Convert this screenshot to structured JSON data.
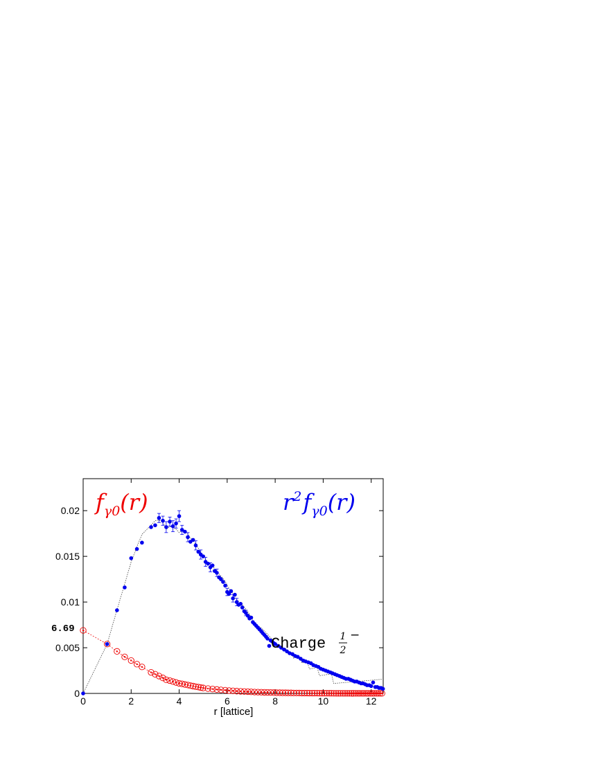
{
  "chart_data": {
    "type": "scatter",
    "xlabel": "r [lattice]",
    "ylabel": "",
    "xlim": [
      0,
      12.5
    ],
    "ylim": [
      0,
      0.0235
    ],
    "grid": false,
    "xticks": [
      0,
      2,
      4,
      6,
      8,
      10,
      12
    ],
    "xtick_labels": [
      "0",
      "2",
      "4",
      "6",
      "8",
      "10",
      "12"
    ],
    "yticks": [
      0,
      0.005,
      0.01,
      0.015,
      0.02
    ],
    "ytick_labels": [
      "0",
      "0.005",
      "0.01",
      "0.015",
      "0.02"
    ],
    "annotations": {
      "left_label": {
        "base": "f",
        "sub": "γ0",
        "arg": "(r)"
      },
      "right_label": {
        "base": "r",
        "sup": "2",
        "mid": "f",
        "sub": "γ0",
        "arg": "(r)"
      },
      "charge_text": "Charge",
      "charge_frac_num": "1",
      "charge_frac_den": "2",
      "charge_sign": "−",
      "intercept_label": "6.69"
    },
    "colors": {
      "r2f": "#0000ee",
      "f": "#ee0000",
      "fit": "#444444"
    },
    "series": [
      {
        "name": "r^2 f_γ0(r)",
        "marker": "filled-circle",
        "points": [
          [
            0,
            0
          ],
          [
            1.0,
            0.0054
          ],
          [
            1.41,
            0.0091
          ],
          [
            1.73,
            0.0116
          ],
          [
            2.0,
            0.0148
          ],
          [
            2.24,
            0.0158
          ],
          [
            2.45,
            0.0165
          ],
          [
            2.83,
            0.0182
          ],
          [
            3.0,
            0.0184
          ],
          [
            3.16,
            0.0192
          ],
          [
            3.32,
            0.0189
          ],
          [
            3.46,
            0.0182
          ],
          [
            3.61,
            0.0188
          ],
          [
            3.74,
            0.0183
          ],
          [
            3.87,
            0.0186
          ],
          [
            4.0,
            0.0194
          ],
          [
            4.12,
            0.0179
          ],
          [
            4.24,
            0.0177
          ],
          [
            4.36,
            0.0171
          ],
          [
            4.47,
            0.0166
          ],
          [
            4.58,
            0.0168
          ],
          [
            4.69,
            0.0162
          ],
          [
            4.8,
            0.0155
          ],
          [
            4.9,
            0.0152
          ],
          [
            5.0,
            0.015
          ],
          [
            5.1,
            0.0144
          ],
          [
            5.2,
            0.0142
          ],
          [
            5.3,
            0.0138
          ],
          [
            5.39,
            0.014
          ],
          [
            5.48,
            0.0134
          ],
          [
            5.57,
            0.0132
          ],
          [
            5.66,
            0.0127
          ],
          [
            5.74,
            0.0125
          ],
          [
            5.83,
            0.0122
          ],
          [
            5.92,
            0.0118
          ],
          [
            6.0,
            0.0111
          ],
          [
            6.08,
            0.0109
          ],
          [
            6.16,
            0.0112
          ],
          [
            6.24,
            0.0104
          ],
          [
            6.32,
            0.0108
          ],
          [
            6.4,
            0.01
          ],
          [
            6.48,
            0.0097
          ],
          [
            6.56,
            0.0098
          ],
          [
            6.63,
            0.0094
          ],
          [
            6.71,
            0.009
          ],
          [
            6.78,
            0.0088
          ],
          [
            6.86,
            0.0085
          ],
          [
            6.93,
            0.0082
          ],
          [
            7.0,
            0.0083
          ],
          [
            7.07,
            0.0078
          ],
          [
            7.14,
            0.0076
          ],
          [
            7.21,
            0.0074
          ],
          [
            7.28,
            0.0072
          ],
          [
            7.35,
            0.007
          ],
          [
            7.42,
            0.0068
          ],
          [
            7.48,
            0.0066
          ],
          [
            7.55,
            0.0064
          ],
          [
            7.62,
            0.0062
          ],
          [
            7.68,
            0.006
          ],
          [
            7.75,
            0.0052
          ],
          [
            7.81,
            0.0058
          ],
          [
            7.87,
            0.0057
          ],
          [
            7.94,
            0.0055
          ],
          [
            8.0,
            0.0054
          ],
          [
            8.12,
            0.0052
          ],
          [
            8.25,
            0.005
          ],
          [
            8.37,
            0.0048
          ],
          [
            8.49,
            0.0046
          ],
          [
            8.6,
            0.0044
          ],
          [
            8.72,
            0.0043
          ],
          [
            8.83,
            0.0041
          ],
          [
            8.94,
            0.004
          ],
          [
            9.06,
            0.0038
          ],
          [
            9.17,
            0.0036
          ],
          [
            9.27,
            0.0035
          ],
          [
            9.38,
            0.0034
          ],
          [
            9.49,
            0.0033
          ],
          [
            9.59,
            0.0031
          ],
          [
            9.7,
            0.003
          ],
          [
            9.8,
            0.0029
          ],
          [
            9.9,
            0.0027
          ],
          [
            10.0,
            0.0026
          ],
          [
            10.1,
            0.0025
          ],
          [
            10.2,
            0.0024
          ],
          [
            10.3,
            0.0023
          ],
          [
            10.39,
            0.0022
          ],
          [
            10.49,
            0.0021
          ],
          [
            10.58,
            0.002
          ],
          [
            10.68,
            0.0019
          ],
          [
            10.77,
            0.0018
          ],
          [
            10.86,
            0.0017
          ],
          [
            10.95,
            0.0016
          ],
          [
            11.05,
            0.0016
          ],
          [
            11.14,
            0.0015
          ],
          [
            11.22,
            0.0014
          ],
          [
            11.31,
            0.0013
          ],
          [
            11.4,
            0.0013
          ],
          [
            11.49,
            0.0012
          ],
          [
            11.58,
            0.0011
          ],
          [
            11.66,
            0.0011
          ],
          [
            11.75,
            0.001
          ],
          [
            11.83,
            0.0009
          ],
          [
            11.92,
            0.0009
          ],
          [
            12.0,
            0.0008
          ],
          [
            12.08,
            0.0012
          ],
          [
            12.17,
            0.0007
          ],
          [
            12.25,
            0.0007
          ],
          [
            12.33,
            0.0006
          ],
          [
            12.41,
            0.0006
          ],
          [
            12.49,
            0.0005
          ]
        ],
        "error_bars": [
          [
            3.16,
            0.0192,
            0.0005
          ],
          [
            3.32,
            0.0189,
            0.0005
          ],
          [
            3.46,
            0.0182,
            0.0006
          ],
          [
            3.61,
            0.0188,
            0.0005
          ],
          [
            3.74,
            0.0183,
            0.0006
          ],
          [
            3.87,
            0.0186,
            0.0005
          ],
          [
            4.0,
            0.0194,
            0.0006
          ],
          [
            4.12,
            0.0179,
            0.0005
          ],
          [
            4.36,
            0.0171,
            0.0005
          ],
          [
            4.69,
            0.0162,
            0.0005
          ],
          [
            4.9,
            0.0152,
            0.0005
          ],
          [
            5.1,
            0.0144,
            0.0005
          ],
          [
            5.3,
            0.0138,
            0.0005
          ],
          [
            5.57,
            0.0132,
            0.0004
          ],
          [
            6.0,
            0.0111,
            0.0004
          ],
          [
            6.24,
            0.0104,
            0.0004
          ],
          [
            6.4,
            0.01,
            0.0004
          ],
          [
            6.78,
            0.0088,
            0.0003
          ]
        ]
      },
      {
        "name": "f_γ0(r)",
        "marker": "open-circle",
        "points": [
          [
            0,
            0.0069
          ],
          [
            1.0,
            0.0054
          ],
          [
            1.41,
            0.0046
          ],
          [
            1.73,
            0.004
          ],
          [
            2.0,
            0.0036
          ],
          [
            2.24,
            0.0032
          ],
          [
            2.45,
            0.0029
          ],
          [
            2.83,
            0.0023
          ],
          [
            3.0,
            0.0021
          ],
          [
            3.16,
            0.0019
          ],
          [
            3.32,
            0.0017
          ],
          [
            3.46,
            0.0015
          ],
          [
            3.61,
            0.0014
          ],
          [
            3.74,
            0.0013
          ],
          [
            3.87,
            0.0012
          ],
          [
            4.0,
            0.0011
          ],
          [
            4.12,
            0.00105
          ],
          [
            4.24,
            0.00098
          ],
          [
            4.36,
            0.00092
          ],
          [
            4.47,
            0.00085
          ],
          [
            4.58,
            0.0008
          ],
          [
            4.69,
            0.00074
          ],
          [
            4.8,
            0.00069
          ],
          [
            4.9,
            0.00064
          ],
          [
            5.0,
            0.0006
          ],
          [
            5.2,
            0.00053
          ],
          [
            5.39,
            0.00048
          ],
          [
            5.57,
            0.00043
          ],
          [
            5.74,
            0.00039
          ],
          [
            5.92,
            0.00035
          ],
          [
            6.08,
            0.00031
          ],
          [
            6.24,
            0.00028
          ],
          [
            6.4,
            0.00025
          ],
          [
            6.56,
            0.00023
          ],
          [
            6.71,
            0.00021
          ],
          [
            6.86,
            0.00019
          ],
          [
            7.0,
            0.00017
          ],
          [
            7.14,
            0.00015
          ],
          [
            7.28,
            0.00014
          ],
          [
            7.42,
            0.00013
          ],
          [
            7.55,
            0.00012
          ],
          [
            7.68,
            0.00011
          ],
          [
            7.81,
            0.0001
          ],
          [
            7.94,
            9e-05
          ],
          [
            8.06,
            8e-05
          ],
          [
            8.19,
            8e-05
          ],
          [
            8.31,
            7e-05
          ],
          [
            8.43,
            7e-05
          ],
          [
            8.54,
            6e-05
          ],
          [
            8.66,
            6e-05
          ],
          [
            8.77,
            5e-05
          ],
          [
            8.89,
            5e-05
          ],
          [
            9.0,
            5e-05
          ],
          [
            9.11,
            4e-05
          ],
          [
            9.22,
            4e-05
          ],
          [
            9.33,
            4e-05
          ],
          [
            9.43,
            3e-05
          ],
          [
            9.54,
            3e-05
          ],
          [
            9.64,
            3e-05
          ],
          [
            9.75,
            3e-05
          ],
          [
            9.85,
            2e-05
          ],
          [
            9.95,
            2e-05
          ],
          [
            10.05,
            2e-05
          ],
          [
            10.15,
            2e-05
          ],
          [
            10.25,
            2e-05
          ],
          [
            10.34,
            2e-05
          ],
          [
            10.44,
            1e-05
          ],
          [
            10.54,
            1e-05
          ],
          [
            10.63,
            1e-05
          ],
          [
            10.72,
            1e-05
          ],
          [
            10.82,
            1e-05
          ],
          [
            10.91,
            1e-05
          ],
          [
            11.0,
            1e-05
          ],
          [
            11.09,
            1e-05
          ],
          [
            11.18,
            1e-05
          ],
          [
            11.27,
            1e-05
          ],
          [
            11.36,
            1e-05
          ],
          [
            11.45,
            1e-05
          ],
          [
            11.53,
            1e-05
          ],
          [
            11.62,
            1e-05
          ],
          [
            11.7,
            1e-05
          ],
          [
            11.79,
            1e-05
          ],
          [
            11.87,
            1e-05
          ],
          [
            11.96,
            1e-05
          ],
          [
            12.04,
            1e-05
          ],
          [
            12.12,
            1e-05
          ],
          [
            12.21,
            1e-05
          ],
          [
            12.29,
            1e-05
          ],
          [
            12.37,
            1e-05
          ],
          [
            12.45,
            1e-05
          ]
        ]
      }
    ]
  }
}
